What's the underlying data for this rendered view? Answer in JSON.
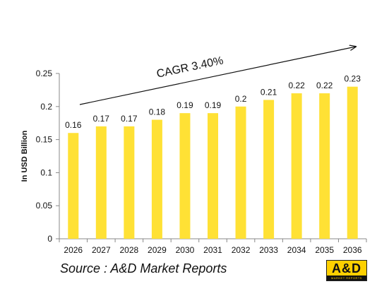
{
  "chart_data": {
    "type": "bar",
    "categories": [
      "2026",
      "2027",
      "2028",
      "2029",
      "2030",
      "2031",
      "2032",
      "2033",
      "2034",
      "2035",
      "2036"
    ],
    "values": [
      0.16,
      0.17,
      0.17,
      0.18,
      0.19,
      0.19,
      0.2,
      0.21,
      0.22,
      0.22,
      0.23
    ],
    "data_labels": [
      "0.16",
      "0.17",
      "0.17",
      "0.18",
      "0.19",
      "0.19",
      "0.2",
      "0.21",
      "0.22",
      "0.22",
      "0.23"
    ],
    "ylabel": "In USD Billion",
    "xlabel": "",
    "ylim": [
      0,
      0.25
    ],
    "yticks": [
      0,
      0.05,
      0.1,
      0.15,
      0.2,
      0.25
    ],
    "ytick_labels": [
      "0",
      "0.05",
      "0.1",
      "0.15",
      "0.2",
      "0.25"
    ],
    "grid": false,
    "bar_color": "#FFE135",
    "annotation": "CAGR 3.40%"
  },
  "source_text": "Source : A&D Market Reports",
  "logo": {
    "text": "A&D",
    "subtext": "MARKET REPORTS",
    "bg_color": "#FED000"
  }
}
